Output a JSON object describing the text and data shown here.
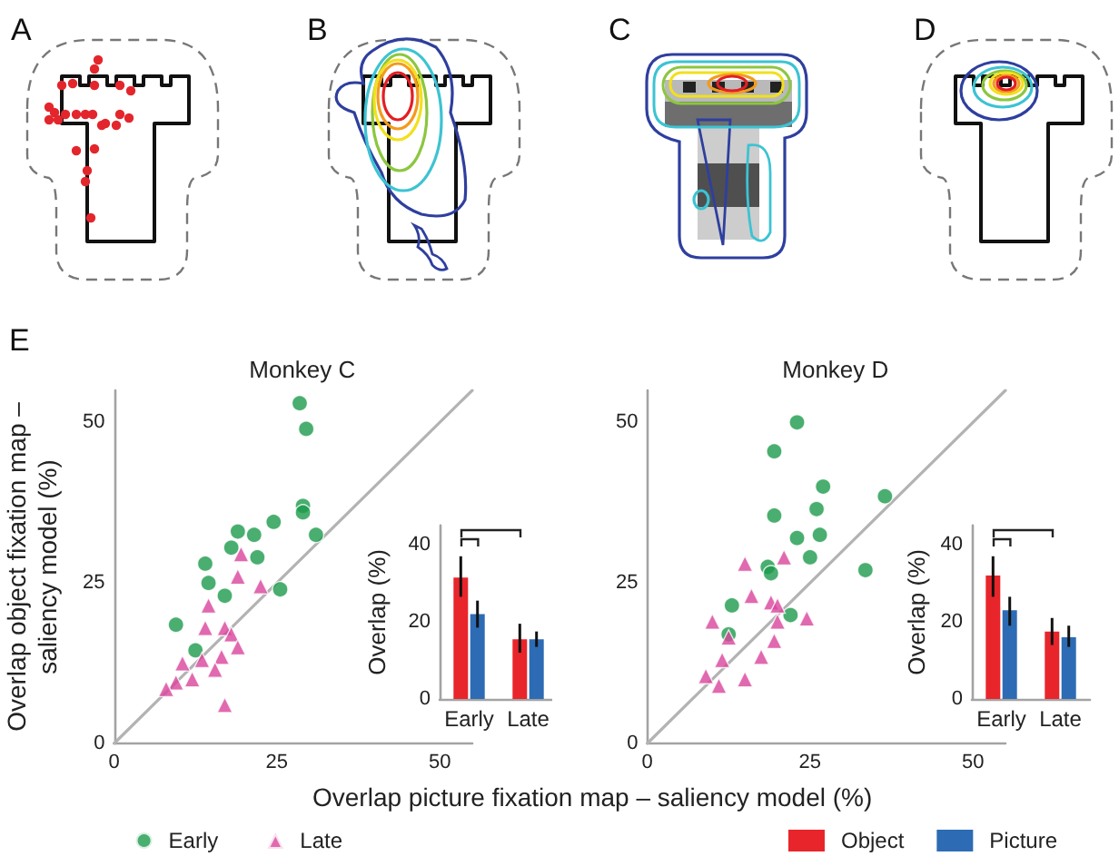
{
  "chart_data": [
    {
      "type": "other",
      "annotations": [
        "A",
        "B",
        "C",
        "D"
      ]
    },
    {
      "type": "scatter",
      "title": "Monkey C",
      "xlabel": "Overlap picture fixation map – saliency model (%)",
      "ylabel": "Overlap object fixation map –\nsaliency model (%)",
      "annotations": [
        "E"
      ],
      "xlim": [
        0,
        55
      ],
      "ylim": [
        0,
        55
      ],
      "xticks": [
        0,
        25,
        50
      ],
      "yticks": [
        0,
        25,
        50
      ],
      "grid": false,
      "legend": "bottom left",
      "series": [
        {
          "name": "Early",
          "color": "#1b9a4b",
          "marker": "circle",
          "x": [
            28.5,
            29.5,
            29,
            29,
            31,
            24.5,
            19,
            21.5,
            18,
            22,
            14,
            14.5,
            17,
            25.5,
            9.5,
            12.5
          ],
          "values": [
            53,
            49,
            37,
            36,
            32.5,
            34.5,
            33,
            32.5,
            30.5,
            29,
            28,
            25,
            23,
            24,
            18.5,
            14.5
          ]
        },
        {
          "name": "Late",
          "color": "#d8449b",
          "marker": "triangle",
          "x": [
            19.5,
            19,
            22.5,
            14.5,
            14,
            17,
            18,
            19,
            13.5,
            10.5,
            16.5,
            15.5,
            12,
            9.5,
            8,
            17
          ],
          "values": [
            29.5,
            26,
            24.5,
            21.5,
            18,
            18,
            17,
            15,
            13,
            12.5,
            13.5,
            11.5,
            10,
            9.5,
            8.5,
            6
          ]
        },
        {
          "type": "line",
          "color": "#b3b3b3",
          "marker": "none",
          "x": [
            0,
            55
          ],
          "values": [
            0,
            55
          ]
        }
      ]
    },
    {
      "type": "bar",
      "ylabel": "Overlap (%)",
      "categories": [
        "Early",
        "Late"
      ],
      "ylim": [
        0,
        45
      ],
      "yticks": [
        0,
        20,
        40
      ],
      "grid": false,
      "series": [
        {
          "color": "#e8252b",
          "values": [
            31.5,
            15.5
          ],
          "errors": [
            [
              26.5,
              37
            ],
            [
              12,
              19.5
            ]
          ]
        },
        {
          "color": "#2d6cb4",
          "values": [
            22,
            15.5
          ],
          "errors": [
            [
              18.5,
              25.5
            ],
            [
              13.5,
              17.5
            ]
          ]
        }
      ]
    },
    {
      "type": "scatter",
      "title": "Monkey D",
      "xlim": [
        0,
        55
      ],
      "ylim": [
        0,
        55
      ],
      "xticks": [
        0,
        25,
        50
      ],
      "yticks": [
        0,
        25,
        50
      ],
      "grid": false,
      "series": [
        {
          "color": "#1b9a4b",
          "marker": "circle",
          "x": [
            23,
            19.5,
            27,
            36.5,
            26,
            19.5,
            26.5,
            23,
            25,
            33.5,
            18.5,
            19,
            13,
            22,
            12.5
          ],
          "values": [
            50,
            45.5,
            40,
            38.5,
            36.5,
            35.5,
            32.5,
            32,
            29,
            27,
            27.5,
            26.5,
            21.5,
            20,
            17
          ]
        },
        {
          "color": "#d8449b",
          "marker": "triangle",
          "x": [
            15,
            21,
            16,
            19,
            20,
            24.5,
            10,
            12.5,
            20,
            19.5,
            17.5,
            11.5,
            9,
            11,
            15
          ],
          "values": [
            28,
            29,
            23,
            22,
            21.5,
            19.5,
            19,
            16.5,
            19,
            16,
            13.5,
            13,
            10.5,
            9,
            10
          ]
        },
        {
          "type": "line",
          "color": "#b3b3b3",
          "marker": "none",
          "x": [
            0,
            55
          ],
          "values": [
            0,
            55
          ]
        }
      ]
    },
    {
      "type": "bar",
      "ylabel": "Overlap (%)",
      "categories": [
        "Early",
        "Late"
      ],
      "ylim": [
        0,
        45
      ],
      "yticks": [
        0,
        20,
        40
      ],
      "grid": false,
      "legend": "bottom",
      "series": [
        {
          "name": "Object",
          "color": "#e8252b",
          "values": [
            32,
            17.5
          ],
          "errors": [
            [
              26.5,
              37
            ],
            [
              14,
              21
            ]
          ]
        },
        {
          "name": "Picture",
          "color": "#2d6cb4",
          "values": [
            23,
            16
          ],
          "errors": [
            [
              19,
              26.5
            ],
            [
              13.5,
              19
            ]
          ]
        }
      ]
    }
  ]
}
